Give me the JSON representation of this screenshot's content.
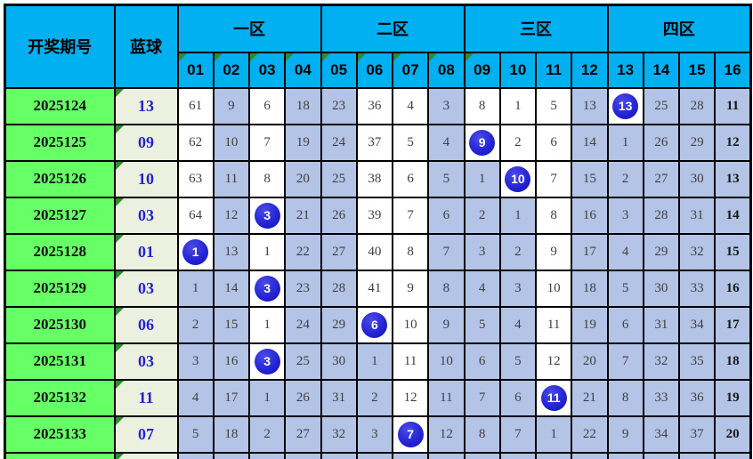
{
  "chart_data": {
    "type": "table",
    "columns": {
      "period_label": "开奖期号",
      "blue_label": "蓝球",
      "zones": [
        {
          "label": "一区",
          "balls": [
            "01",
            "02",
            "03",
            "04"
          ]
        },
        {
          "label": "二区",
          "balls": [
            "05",
            "06",
            "07",
            "08"
          ]
        },
        {
          "label": "三区",
          "balls": [
            "09",
            "10",
            "11",
            "12"
          ]
        },
        {
          "label": "四区",
          "balls": [
            "13",
            "14",
            "15",
            "16"
          ]
        }
      ],
      "corner_marked_headers": [
        "01",
        "02",
        "03",
        "04",
        "05",
        "06",
        "07",
        "08",
        "09"
      ]
    },
    "rows": [
      {
        "period": "2025124",
        "blue": "13",
        "hit_column": "13",
        "cells": [
          61,
          9,
          6,
          18,
          23,
          36,
          4,
          3,
          8,
          1,
          5,
          13,
          13,
          25,
          28,
          11
        ]
      },
      {
        "period": "2025125",
        "blue": "09",
        "hit_column": "09",
        "cells": [
          62,
          10,
          7,
          19,
          24,
          37,
          5,
          4,
          9,
          2,
          6,
          14,
          1,
          26,
          29,
          12
        ]
      },
      {
        "period": "2025126",
        "blue": "10",
        "hit_column": "10",
        "cells": [
          63,
          11,
          8,
          20,
          25,
          38,
          6,
          5,
          1,
          10,
          7,
          15,
          2,
          27,
          30,
          13
        ]
      },
      {
        "period": "2025127",
        "blue": "03",
        "hit_column": "03",
        "cells": [
          64,
          12,
          3,
          21,
          26,
          39,
          7,
          6,
          2,
          1,
          8,
          16,
          3,
          28,
          31,
          14
        ]
      },
      {
        "period": "2025128",
        "blue": "01",
        "hit_column": "01",
        "cells": [
          1,
          13,
          1,
          22,
          27,
          40,
          8,
          7,
          3,
          2,
          9,
          17,
          4,
          29,
          32,
          15
        ]
      },
      {
        "period": "2025129",
        "blue": "03",
        "hit_column": "03",
        "cells": [
          1,
          14,
          3,
          23,
          28,
          41,
          9,
          8,
          4,
          3,
          10,
          18,
          5,
          30,
          33,
          16
        ]
      },
      {
        "period": "2025130",
        "blue": "06",
        "hit_column": "06",
        "cells": [
          2,
          15,
          1,
          24,
          29,
          6,
          10,
          9,
          5,
          4,
          11,
          19,
          6,
          31,
          34,
          17
        ]
      },
      {
        "period": "2025131",
        "blue": "03",
        "hit_column": "03",
        "cells": [
          3,
          16,
          3,
          25,
          30,
          1,
          11,
          10,
          6,
          5,
          12,
          20,
          7,
          32,
          35,
          18
        ]
      },
      {
        "period": "2025132",
        "blue": "11",
        "hit_column": "11",
        "cells": [
          4,
          17,
          1,
          26,
          31,
          2,
          12,
          11,
          7,
          6,
          11,
          21,
          8,
          33,
          36,
          19
        ]
      },
      {
        "period": "2025133",
        "blue": "07",
        "hit_column": "07",
        "cells": [
          5,
          18,
          2,
          27,
          32,
          3,
          7,
          12,
          8,
          7,
          1,
          22,
          9,
          34,
          37,
          20
        ]
      }
    ],
    "legend": {
      "pre_hit_meaning": "white cell: miss count leading up to a hit visible in the window",
      "post_hit_meaning": "shaded cell: miss count after the last visible hit",
      "circle_meaning": "blue circle: drawn blue ball number"
    }
  },
  "colors": {
    "header_bg": "#00B0F0",
    "period_bg": "#66FF66",
    "blue_col_bg": "#EBF1DE",
    "pre_hit_bg": "#FFFFFF",
    "post_hit_bg": "#B3C4E6",
    "circle_bg": "#2121CE",
    "blue_text": "#2323CC",
    "cell_text": "#3F3F3F",
    "corner_mark": "#2E8B2E",
    "border": "#000000"
  }
}
